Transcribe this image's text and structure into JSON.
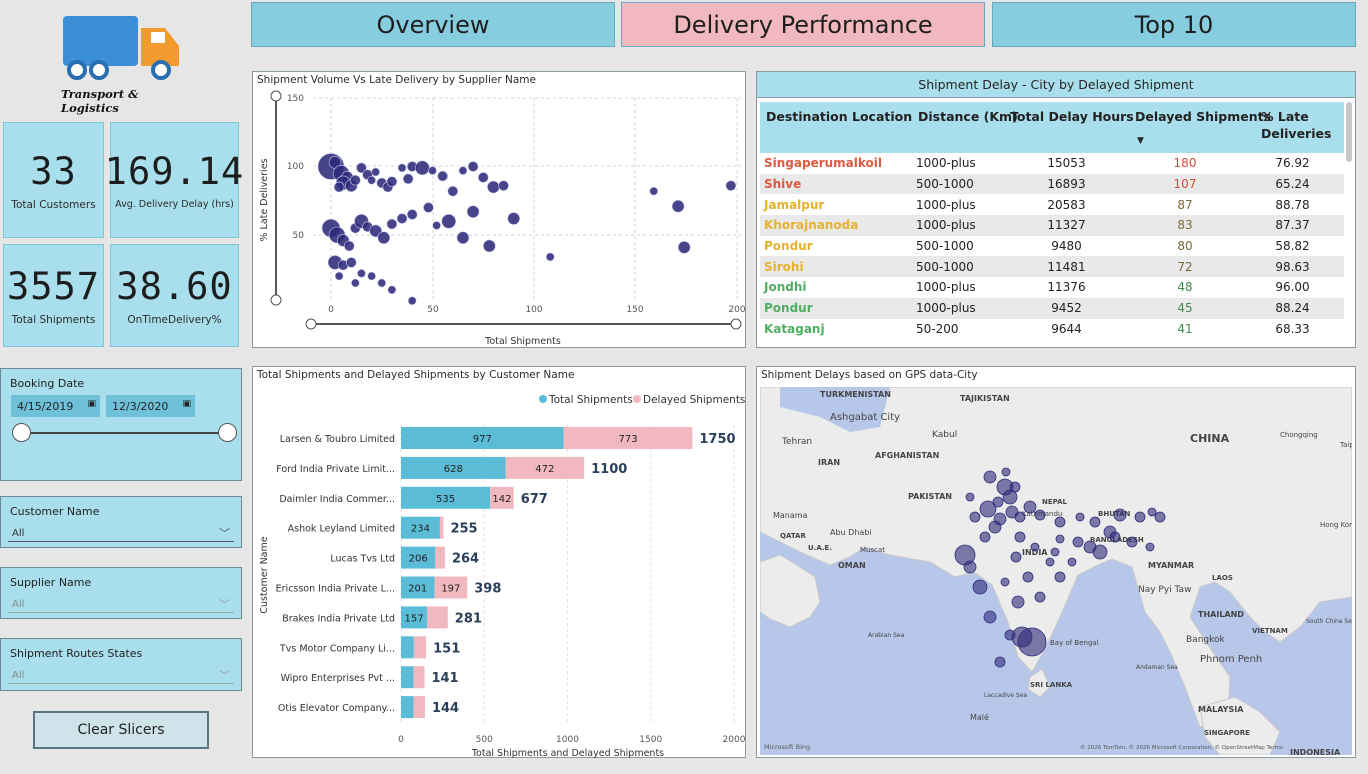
{
  "logo": {
    "text": "Transport & Logistics"
  },
  "nav": {
    "tabs": [
      {
        "label": "Overview"
      },
      {
        "label": "Delivery Performance"
      },
      {
        "label": "Top 10"
      }
    ]
  },
  "kpis": [
    {
      "value": "33",
      "label": "Total Customers"
    },
    {
      "value": "169.14",
      "label": "Avg. Delivery Delay (hrs)"
    },
    {
      "value": "3557",
      "label": "Total Shipments"
    },
    {
      "value": "38.60",
      "label": "OnTimeDelivery%"
    }
  ],
  "booking_date": {
    "title": "Booking Date",
    "start": "4/15/2019",
    "end": "12/3/2020"
  },
  "slicers": [
    {
      "title": "Customer Name",
      "value": "All"
    },
    {
      "title": "Supplier Name",
      "value": "All"
    },
    {
      "title": "Shipment Routes States",
      "value": "All"
    }
  ],
  "clear_button": "Clear Slicers",
  "scatter": {
    "title": "Shipment Volume Vs Late Delivery by Supplier Name",
    "xlabel": "Total Shipments",
    "ylabel": "% Late Deliveries",
    "xticks": [
      "0",
      "50",
      "100",
      "150",
      "200"
    ],
    "yticks": [
      "150",
      "100",
      "50"
    ]
  },
  "delay_table": {
    "title": "Shipment Delay - City by Delayed Shipment",
    "columns": [
      "Destination Location",
      "Distance (Km)",
      "Total Delay Hours",
      "Delayed Shipments",
      "% Late Deliveries"
    ],
    "rows": [
      {
        "city": "Singaperumalkoil",
        "distance": "1000-plus",
        "hours": "15053",
        "delayed": "180",
        "late": "76.92",
        "color": "#e0593f"
      },
      {
        "city": "Shive",
        "distance": "500-1000",
        "hours": "16893",
        "delayed": "107",
        "late": "65.24",
        "color": "#e0593f"
      },
      {
        "city": "Jamalpur",
        "distance": "1000-plus",
        "hours": "20583",
        "delayed": "87",
        "late": "88.78",
        "color": "#e6b12d"
      },
      {
        "city": "Khorajnanoda",
        "distance": "1000-plus",
        "hours": "11327",
        "delayed": "83",
        "late": "87.37",
        "color": "#e6b12d"
      },
      {
        "city": "Pondur",
        "distance": "500-1000",
        "hours": "9480",
        "delayed": "80",
        "late": "58.82",
        "color": "#e6b12d"
      },
      {
        "city": "Sirohi",
        "distance": "500-1000",
        "hours": "11481",
        "delayed": "72",
        "late": "98.63",
        "color": "#e6b12d"
      },
      {
        "city": "Jondhi",
        "distance": "1000-plus",
        "hours": "11376",
        "delayed": "48",
        "late": "96.00",
        "color": "#4fae62"
      },
      {
        "city": "Pondur",
        "distance": "1000-plus",
        "hours": "9452",
        "delayed": "45",
        "late": "88.24",
        "color": "#4fae62"
      },
      {
        "city": "Kataganj",
        "distance": "50-200",
        "hours": "9644",
        "delayed": "41",
        "late": "68.33",
        "color": "#4fae62"
      }
    ]
  },
  "chart_data": {
    "type": "bar",
    "title": "Total Shipments and Delayed Shipments by Customer Name",
    "xlabel": "Total Shipments and Delayed Shipments",
    "ylabel": "Customer Name",
    "xlim": [
      0,
      2000
    ],
    "xticks": [
      "0",
      "500",
      "1000",
      "1500",
      "2000"
    ],
    "legend": "top-right",
    "categories": [
      "Larsen & Toubro Limited",
      "Ford India Private Limit...",
      "Daimler India Commer...",
      "Ashok Leyland Limited",
      "Lucas Tvs Ltd",
      "Ericsson India Private L...",
      "Brakes India Private Ltd",
      "Tvs Motor Company Li...",
      "Wipro Enterprises Pvt ...",
      "Otis Elevator Company..."
    ],
    "series": [
      {
        "name": "Total Shipments",
        "color": "#5bbcd8",
        "values": [
          977,
          628,
          535,
          234,
          206,
          201,
          157,
          77,
          75,
          75
        ],
        "labels": [
          "977",
          "628",
          "535",
          "234",
          "206",
          "201",
          "157",
          "",
          "",
          ""
        ]
      },
      {
        "name": "Delayed Shipments",
        "color": "#f2b8bf",
        "values": [
          773,
          472,
          142,
          21,
          58,
          197,
          124,
          74,
          66,
          69
        ],
        "labels": [
          "773",
          "472",
          "142",
          "",
          "",
          "197",
          "",
          "",
          "",
          ""
        ]
      }
    ],
    "totals": [
      "1750",
      "1100",
      "677",
      "255",
      "264",
      "398",
      "281",
      "151",
      "141",
      "144"
    ]
  },
  "map": {
    "title": "Shipment Delays based on GPS data-City",
    "labels": [
      "TURKMENISTAN",
      "TAJIKISTAN",
      "Ashgabat City",
      "Kabul",
      "Tehran",
      "IRAN",
      "AFGHANISTAN",
      "PAKISTAN",
      "CHINA",
      "NEPAL",
      "Kathmandu",
      "BHUTAN",
      "BANGLADESH",
      "INDIA",
      "MYANMAR",
      "Manama",
      "QATAR",
      "U.A.E.",
      "Abu Dhabi",
      "Muscat",
      "OMAN",
      "LAOS",
      "THAILAND",
      "VIETNAM",
      "Bangkok",
      "Phnom Penh",
      "Nay Pyi Taw",
      "Arabian Sea",
      "Bay of Bengal",
      "Andaman Sea",
      "SRI LANKA",
      "Laccadive Sea",
      "Malé",
      "MALAYSIA",
      "SINGAPORE",
      "INDONESIA",
      "South China Sea",
      "Taipei",
      "Hong Kong",
      "Chongqing"
    ],
    "brand": "Microsoft Bing",
    "copyright": "© 2026 TomTom, © 2026 Microsoft Corporation, © OpenStreetMap  Terms"
  }
}
